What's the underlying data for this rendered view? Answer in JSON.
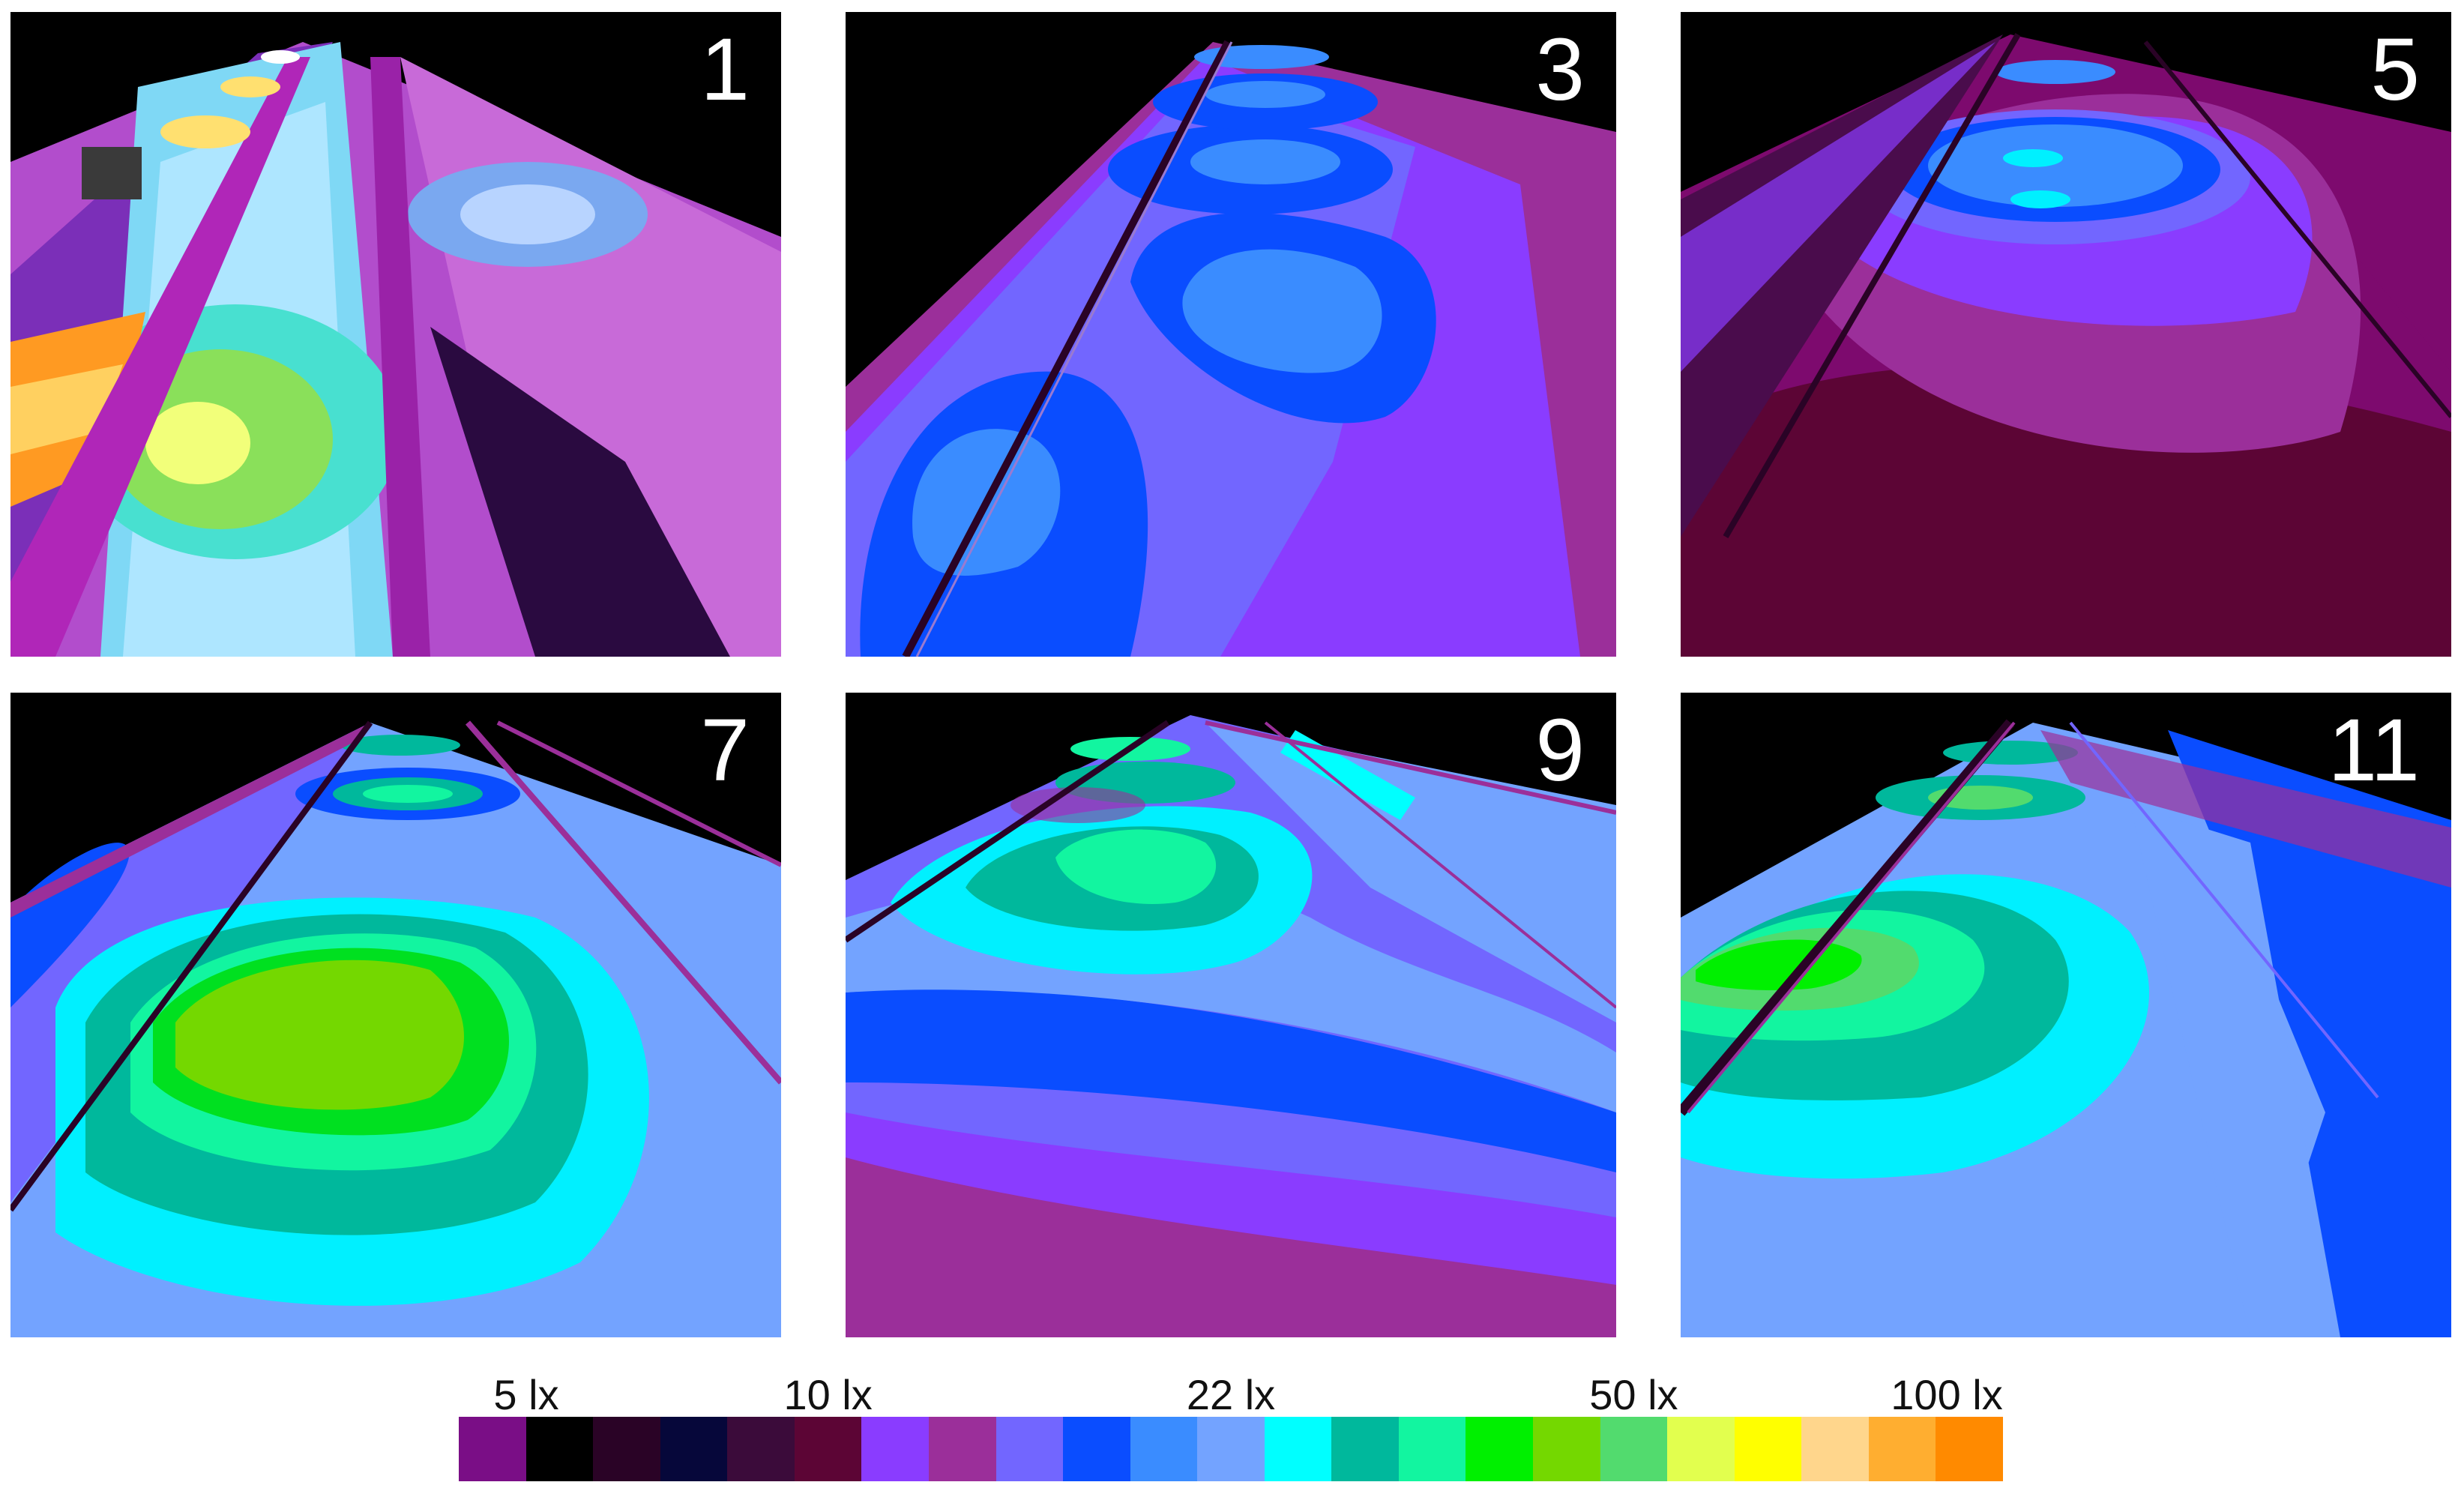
{
  "panels": [
    {
      "id": "p1",
      "label": "1",
      "variant": "close"
    },
    {
      "id": "p3",
      "label": "3",
      "variant": "blue"
    },
    {
      "id": "p5",
      "label": "5",
      "variant": "dim"
    },
    {
      "id": "p7",
      "label": "7",
      "variant": "green"
    },
    {
      "id": "p9",
      "label": "9",
      "variant": "cyan"
    },
    {
      "id": "p11",
      "label": "11",
      "variant": "teal"
    }
  ],
  "legend": {
    "labels": [
      {
        "text": "5 lx",
        "index": 0
      },
      {
        "text": "10 lx",
        "index": 5
      },
      {
        "text": "22 lx",
        "index": 11
      },
      {
        "text": "50 lx",
        "index": 17
      },
      {
        "text": "100 lx",
        "index": 22
      }
    ],
    "colors": [
      "#7a0e86",
      "#000000",
      "#2a0326",
      "#06073a",
      "#3b0b3a",
      "#5c0535",
      "#8a3cff",
      "#9b2f9a",
      "#7266ff",
      "#0a4dff",
      "#3a8cff",
      "#73a3ff",
      "#00ffff",
      "#00b89c",
      "#12f5a0",
      "#00f000",
      "#74d800",
      "#52db6e",
      "#e2ff4e",
      "#ffff00",
      "#ffd68c",
      "#ffae30",
      "#ff8a00"
    ]
  }
}
